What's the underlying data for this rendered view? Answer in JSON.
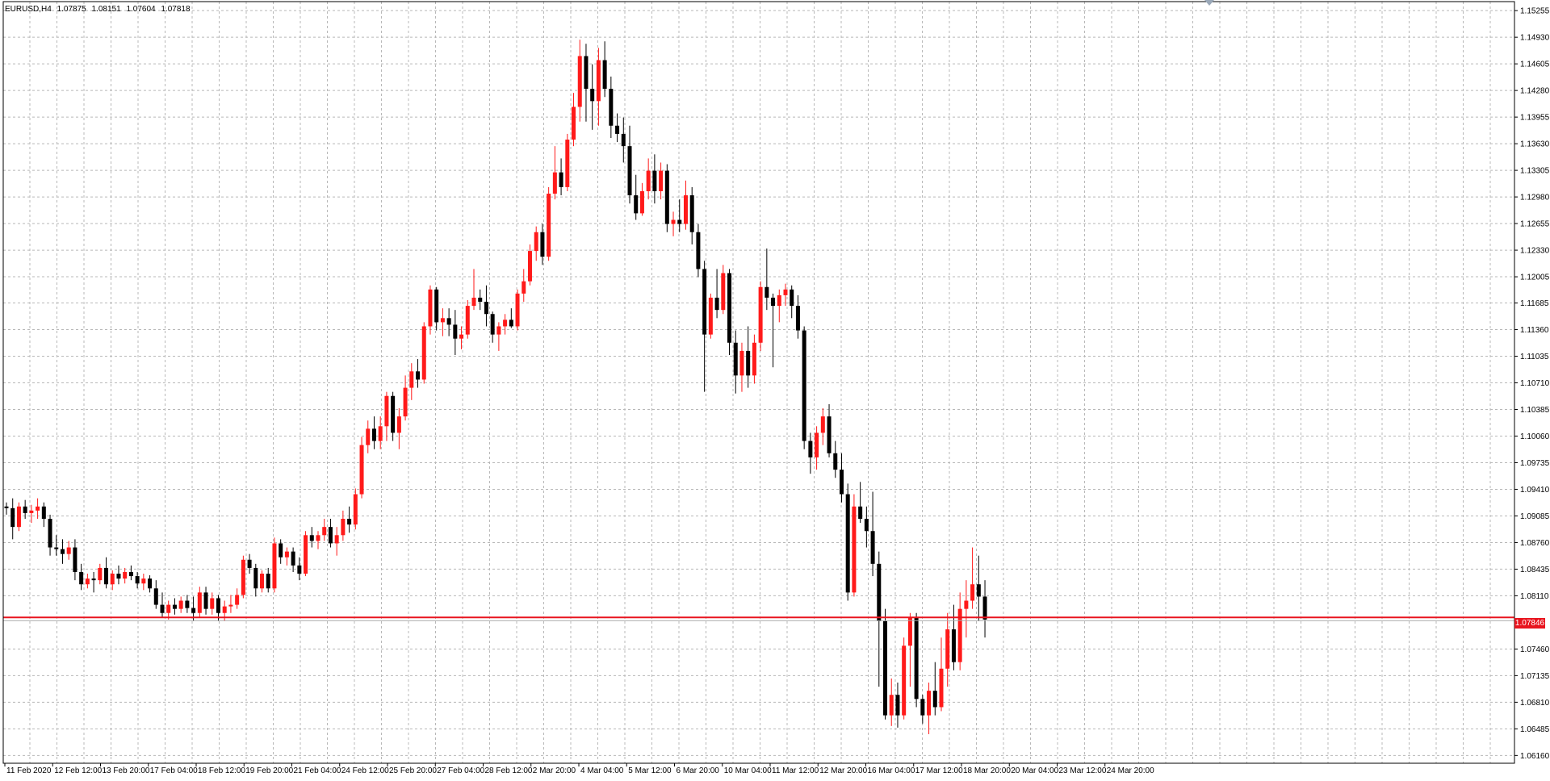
{
  "header": {
    "symbol": "EURUSD,H4",
    "open": "1.07875",
    "high": "1.08151",
    "low": "1.07604",
    "close": "1.07818"
  },
  "price_axis": {
    "labels": [
      "1.15255",
      "1.14930",
      "1.14605",
      "1.14280",
      "1.13955",
      "1.13630",
      "1.13305",
      "1.12980",
      "1.12655",
      "1.12330",
      "1.12005",
      "1.11685",
      "1.11360",
      "1.11035",
      "1.10710",
      "1.10385",
      "1.10060",
      "1.09735",
      "1.09410",
      "1.09085",
      "1.08760",
      "1.08435",
      "1.08110",
      "1.07460",
      "1.07135",
      "1.06810",
      "1.06485",
      "1.06160"
    ]
  },
  "time_axis": {
    "labels": [
      "11 Feb 2020",
      "12 Feb 12:00",
      "13 Feb 20:00",
      "17 Feb 04:00",
      "18 Feb 12:00",
      "19 Feb 20:00",
      "21 Feb 04:00",
      "24 Feb 12:00",
      "25 Feb 20:00",
      "27 Feb 04:00",
      "28 Feb 12:00",
      "2 Mar 20:00",
      "4 Mar 04:00",
      "5 Mar 12:00",
      "6 Mar 20:00",
      "10 Mar 04:00",
      "11 Mar 12:00",
      "12 Mar 20:00",
      "16 Mar 04:00",
      "17 Mar 12:00",
      "18 Mar 20:00",
      "20 Mar 04:00",
      "23 Mar 12:00",
      "24 Mar 20:00"
    ]
  },
  "current_price": "1.07846",
  "colors": {
    "bull": "#ff1a1a",
    "bear": "#000000",
    "price_line": "#e8141e",
    "grid": "#b8b8b8",
    "axis": "#000000"
  },
  "chart_data": {
    "type": "candlestick",
    "symbol": "EURUSD",
    "timeframe": "H4",
    "y_range": [
      1.0603,
      1.1532
    ],
    "bars": [
      [
        1.092,
        1.0925,
        1.091,
        1.0918
      ],
      [
        1.0918,
        1.093,
        1.088,
        1.0895
      ],
      [
        1.0895,
        1.0925,
        1.089,
        1.092
      ],
      [
        1.092,
        1.0928,
        1.0905,
        1.0912
      ],
      [
        1.0912,
        1.0922,
        1.09,
        1.0915
      ],
      [
        1.0915,
        1.093,
        1.0905,
        1.092
      ],
      [
        1.092,
        1.0925,
        1.0895,
        1.0905
      ],
      [
        1.0905,
        1.091,
        1.086,
        1.087
      ],
      [
        1.087,
        1.0885,
        1.086,
        1.0868
      ],
      [
        1.0868,
        1.088,
        1.085,
        1.0862
      ],
      [
        1.0862,
        1.0878,
        1.0855,
        1.087
      ],
      [
        1.087,
        1.088,
        1.083,
        1.084
      ],
      [
        1.084,
        1.085,
        1.0818,
        1.0825
      ],
      [
        1.0825,
        1.0838,
        1.082,
        1.0832
      ],
      [
        1.0832,
        1.084,
        1.0815,
        1.083
      ],
      [
        1.083,
        1.085,
        1.0825,
        1.0845
      ],
      [
        1.0845,
        1.0858,
        1.082,
        1.0825
      ],
      [
        1.0825,
        1.0842,
        1.0818,
        1.0838
      ],
      [
        1.0838,
        1.0848,
        1.0825,
        1.0832
      ],
      [
        1.0832,
        1.0845,
        1.0826,
        1.084
      ],
      [
        1.084,
        1.0848,
        1.083,
        1.0835
      ],
      [
        1.0835,
        1.084,
        1.082,
        1.0826
      ],
      [
        1.0826,
        1.0838,
        1.0818,
        1.0832
      ],
      [
        1.0832,
        1.0836,
        1.0815,
        1.082
      ],
      [
        1.082,
        1.083,
        1.0795,
        1.08
      ],
      [
        1.08,
        1.0815,
        1.0785,
        1.079
      ],
      [
        1.079,
        1.0805,
        1.0782,
        1.08
      ],
      [
        1.08,
        1.0808,
        1.0788,
        1.0795
      ],
      [
        1.0795,
        1.081,
        1.079,
        1.0805
      ],
      [
        1.0805,
        1.0812,
        1.079,
        1.0796
      ],
      [
        1.0796,
        1.081,
        1.078,
        1.079
      ],
      [
        1.079,
        1.0822,
        1.0785,
        1.0815
      ],
      [
        1.0815,
        1.0822,
        1.0788,
        1.0795
      ],
      [
        1.0795,
        1.0815,
        1.0788,
        1.0808
      ],
      [
        1.0808,
        1.0812,
        1.078,
        1.079
      ],
      [
        1.079,
        1.0805,
        1.078,
        1.0798
      ],
      [
        1.0798,
        1.0812,
        1.079,
        1.08
      ],
      [
        1.08,
        1.082,
        1.0795,
        1.0812
      ],
      [
        1.0812,
        1.086,
        1.0808,
        1.0855
      ],
      [
        1.0855,
        1.0862,
        1.0838,
        1.0845
      ],
      [
        1.0845,
        1.085,
        1.081,
        1.082
      ],
      [
        1.082,
        1.0842,
        1.0815,
        1.0838
      ],
      [
        1.0838,
        1.0845,
        1.0815,
        1.082
      ],
      [
        1.082,
        1.0882,
        1.0815,
        1.0875
      ],
      [
        1.0875,
        1.088,
        1.085,
        1.0858
      ],
      [
        1.0858,
        1.087,
        1.0848,
        1.0865
      ],
      [
        1.0865,
        1.087,
        1.084,
        1.0848
      ],
      [
        1.0848,
        1.0858,
        1.083,
        1.0838
      ],
      [
        1.0838,
        1.089,
        1.0835,
        1.0885
      ],
      [
        1.0885,
        1.0895,
        1.087,
        1.0878
      ],
      [
        1.0878,
        1.089,
        1.0868,
        1.0885
      ],
      [
        1.0885,
        1.0905,
        1.0878,
        1.0895
      ],
      [
        1.0895,
        1.0905,
        1.087,
        1.0875
      ],
      [
        1.0875,
        1.0895,
        1.086,
        1.0885
      ],
      [
        1.0885,
        1.0915,
        1.0878,
        1.0905
      ],
      [
        1.0905,
        1.092,
        1.0888,
        1.0898
      ],
      [
        1.0898,
        1.0942,
        1.0892,
        1.0935
      ],
      [
        1.0935,
        1.1005,
        1.093,
        1.0995
      ],
      [
        1.0995,
        1.1025,
        1.0985,
        1.1015
      ],
      [
        1.1015,
        1.103,
        1.099,
        1.1
      ],
      [
        1.1,
        1.103,
        1.099,
        1.1018
      ],
      [
        1.1018,
        1.106,
        1.1,
        1.1055
      ],
      [
        1.1055,
        1.106,
        1.1,
        1.101
      ],
      [
        1.101,
        1.104,
        1.099,
        1.103
      ],
      [
        1.103,
        1.108,
        1.1025,
        1.1065
      ],
      [
        1.1065,
        1.1095,
        1.105,
        1.1085
      ],
      [
        1.1085,
        1.11,
        1.1065,
        1.1075
      ],
      [
        1.1075,
        1.1145,
        1.107,
        1.114
      ],
      [
        1.114,
        1.119,
        1.113,
        1.1185
      ],
      [
        1.1185,
        1.1188,
        1.1135,
        1.1145
      ],
      [
        1.1145,
        1.1162,
        1.1128,
        1.115
      ],
      [
        1.115,
        1.1162,
        1.1128,
        1.1142
      ],
      [
        1.1142,
        1.116,
        1.1105,
        1.1125
      ],
      [
        1.1125,
        1.114,
        1.1112,
        1.113
      ],
      [
        1.113,
        1.1172,
        1.1125,
        1.1165
      ],
      [
        1.1165,
        1.121,
        1.116,
        1.1175
      ],
      [
        1.1175,
        1.1185,
        1.116,
        1.117
      ],
      [
        1.117,
        1.119,
        1.114,
        1.1155
      ],
      [
        1.1155,
        1.1158,
        1.112,
        1.113
      ],
      [
        1.113,
        1.1145,
        1.111,
        1.114
      ],
      [
        1.114,
        1.1155,
        1.113,
        1.1148
      ],
      [
        1.1148,
        1.1162,
        1.1138,
        1.114
      ],
      [
        1.114,
        1.1185,
        1.1135,
        1.118
      ],
      [
        1.118,
        1.121,
        1.117,
        1.1195
      ],
      [
        1.1195,
        1.124,
        1.119,
        1.1232
      ],
      [
        1.1232,
        1.1262,
        1.122,
        1.1255
      ],
      [
        1.1255,
        1.1265,
        1.1215,
        1.1225
      ],
      [
        1.1225,
        1.131,
        1.122,
        1.1302
      ],
      [
        1.1302,
        1.136,
        1.1295,
        1.1328
      ],
      [
        1.1328,
        1.1345,
        1.13,
        1.131
      ],
      [
        1.131,
        1.1375,
        1.1305,
        1.1368
      ],
      [
        1.1368,
        1.1425,
        1.136,
        1.1408
      ],
      [
        1.1408,
        1.149,
        1.139,
        1.147
      ],
      [
        1.147,
        1.1485,
        1.139,
        1.143
      ],
      [
        1.143,
        1.146,
        1.138,
        1.1415
      ],
      [
        1.1415,
        1.148,
        1.1385,
        1.1465
      ],
      [
        1.1465,
        1.1488,
        1.142,
        1.143
      ],
      [
        1.143,
        1.1445,
        1.137,
        1.1385
      ],
      [
        1.1385,
        1.14,
        1.1365,
        1.1375
      ],
      [
        1.1375,
        1.1395,
        1.134,
        1.136
      ],
      [
        1.136,
        1.1385,
        1.129,
        1.13
      ],
      [
        1.13,
        1.1325,
        1.127,
        1.1278
      ],
      [
        1.1278,
        1.1315,
        1.1275,
        1.1305
      ],
      [
        1.1305,
        1.1345,
        1.1295,
        1.133
      ],
      [
        1.133,
        1.135,
        1.129,
        1.1305
      ],
      [
        1.1305,
        1.134,
        1.1295,
        1.133
      ],
      [
        1.133,
        1.1338,
        1.1255,
        1.1265
      ],
      [
        1.1265,
        1.128,
        1.125,
        1.127
      ],
      [
        1.127,
        1.1295,
        1.1255,
        1.1265
      ],
      [
        1.1265,
        1.1318,
        1.1258,
        1.13
      ],
      [
        1.13,
        1.131,
        1.124,
        1.1255
      ],
      [
        1.1255,
        1.1265,
        1.12,
        1.121
      ],
      [
        1.121,
        1.122,
        1.106,
        1.113
      ],
      [
        1.113,
        1.118,
        1.1125,
        1.1175
      ],
      [
        1.1175,
        1.121,
        1.115,
        1.116
      ],
      [
        1.116,
        1.1215,
        1.1155,
        1.1205
      ],
      [
        1.1205,
        1.121,
        1.1105,
        1.112
      ],
      [
        1.112,
        1.1135,
        1.1058,
        1.108
      ],
      [
        1.108,
        1.112,
        1.106,
        1.111
      ],
      [
        1.111,
        1.114,
        1.1065,
        1.108
      ],
      [
        1.108,
        1.113,
        1.107,
        1.112
      ],
      [
        1.112,
        1.1195,
        1.111,
        1.1188
      ],
      [
        1.1188,
        1.1235,
        1.116,
        1.1175
      ],
      [
        1.1175,
        1.118,
        1.109,
        1.1165
      ],
      [
        1.1165,
        1.1185,
        1.1145,
        1.1178
      ],
      [
        1.1178,
        1.1192,
        1.1165,
        1.1185
      ],
      [
        1.1185,
        1.119,
        1.115,
        1.1165
      ],
      [
        1.1165,
        1.1178,
        1.1125,
        1.1135
      ],
      [
        1.1135,
        1.114,
        1.099,
        1.1
      ],
      [
        1.1,
        1.101,
        1.096,
        1.098
      ],
      [
        1.098,
        1.1018,
        1.0965,
        1.101
      ],
      [
        1.101,
        1.104,
        1.0995,
        1.103
      ],
      [
        1.103,
        1.1045,
        1.098,
        1.0985
      ],
      [
        1.0985,
        1.1,
        1.0955,
        1.0965
      ],
      [
        1.0965,
        1.0985,
        1.0925,
        1.0935
      ],
      [
        1.0935,
        1.0948,
        1.0805,
        1.0815
      ],
      [
        1.0815,
        1.0935,
        1.081,
        1.092
      ],
      [
        1.092,
        1.095,
        1.09,
        1.0905
      ],
      [
        1.0905,
        1.092,
        1.087,
        1.089
      ],
      [
        1.089,
        1.0938,
        1.0835,
        1.085
      ],
      [
        1.085,
        1.0865,
        1.07,
        1.078
      ],
      [
        1.078,
        1.0795,
        1.066,
        1.0665
      ],
      [
        1.0665,
        1.071,
        1.0652,
        1.069
      ],
      [
        1.069,
        1.0705,
        1.065,
        1.0665
      ],
      [
        1.0665,
        1.076,
        1.066,
        1.075
      ],
      [
        1.075,
        1.079,
        1.07,
        1.0785
      ],
      [
        1.0785,
        1.079,
        1.0675,
        1.0685
      ],
      [
        1.0685,
        1.069,
        1.0655,
        1.0665
      ],
      [
        1.0665,
        1.0705,
        1.0642,
        1.0695
      ],
      [
        1.0695,
        1.073,
        1.0665,
        1.0675
      ],
      [
        1.0675,
        1.076,
        1.067,
        1.0722
      ],
      [
        1.0722,
        1.079,
        1.07,
        1.077
      ],
      [
        1.077,
        1.08,
        1.072,
        1.073
      ],
      [
        1.073,
        1.0815,
        1.072,
        1.0795
      ],
      [
        1.0795,
        1.083,
        1.076,
        1.0805
      ],
      [
        1.0805,
        1.087,
        1.0795,
        1.0825
      ],
      [
        1.0825,
        1.086,
        1.078,
        1.081
      ],
      [
        1.081,
        1.083,
        1.076,
        1.0782
      ]
    ]
  }
}
